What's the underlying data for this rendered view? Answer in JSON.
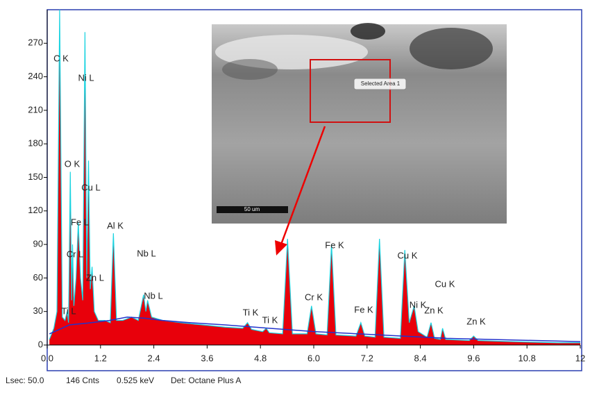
{
  "chart_data": {
    "type": "spectrum",
    "x": [
      0.05,
      0.15,
      0.22,
      0.28,
      0.34,
      0.4,
      0.45,
      0.48,
      0.52,
      0.55,
      0.57,
      0.6,
      0.65,
      0.7,
      0.75,
      0.8,
      0.85,
      0.89,
      0.93,
      0.97,
      1.01,
      1.06,
      1.15,
      1.3,
      1.42,
      1.49,
      1.56,
      1.7,
      1.9,
      2.05,
      2.17,
      2.22,
      2.26,
      2.35,
      2.6,
      3.0,
      3.5,
      4.0,
      4.4,
      4.51,
      4.6,
      4.85,
      4.93,
      5.0,
      5.3,
      5.41,
      5.52,
      5.85,
      5.95,
      6.05,
      6.3,
      6.4,
      6.5,
      6.95,
      7.06,
      7.15,
      7.38,
      7.48,
      7.58,
      7.95,
      8.05,
      8.15,
      8.26,
      8.35,
      8.55,
      8.64,
      8.72,
      8.85,
      8.9,
      8.97,
      9.5,
      9.6,
      9.7,
      10.5,
      11.5,
      12.0
    ],
    "values": [
      5,
      15,
      30,
      300,
      25,
      22,
      30,
      20,
      155,
      40,
      90,
      35,
      60,
      110,
      60,
      40,
      280,
      60,
      165,
      50,
      70,
      30,
      22,
      22,
      20,
      100,
      22,
      22,
      25,
      22,
      45,
      30,
      40,
      25,
      22,
      20,
      18,
      16,
      15,
      20,
      14,
      12,
      15,
      11,
      10,
      95,
      10,
      10,
      35,
      10,
      9,
      90,
      9,
      8,
      20,
      8,
      7,
      95,
      7,
      6,
      85,
      20,
      35,
      12,
      7,
      20,
      6,
      5,
      15,
      5,
      4,
      8,
      4,
      3,
      2,
      2
    ],
    "color": "#e8000b",
    "outline_color": "#19d3e0",
    "background": {
      "x": [
        0.05,
        0.5,
        1.0,
        1.4,
        1.8,
        2.2,
        2.6,
        3.2,
        4.0,
        5.0,
        6.0,
        7.0,
        8.0,
        9.0,
        10.0,
        11.0,
        12.0
      ],
      "values": [
        10,
        18,
        20,
        22,
        25,
        24,
        22,
        20,
        18,
        15,
        12,
        10,
        8,
        6,
        5,
        4,
        3
      ],
      "color": "#2233cc"
    },
    "xlim": [
      0,
      12
    ],
    "ylim": [
      0,
      300
    ],
    "xticks": [
      {
        "value": 0,
        "label": "0.0"
      },
      1.2,
      2.4,
      3.6,
      4.8,
      {
        "value": 6,
        "label": "6.0"
      },
      7.2,
      8.4,
      9.6,
      10.8,
      12
    ],
    "yticks": [
      0,
      30,
      60,
      90,
      120,
      150,
      180,
      210,
      240,
      270
    ],
    "annotations": [
      "C  K",
      "Ni L",
      "O  K",
      "Cu L",
      "Fe L",
      "Al K",
      "Cr L",
      "Zn L",
      "Ti L",
      "Nb L",
      "Nb L",
      "Ti K",
      "Ti K",
      "Cr K",
      "Fe K",
      "Fe K",
      "Cu K",
      "Ni K",
      "Cu K",
      "Zn K",
      "Zn K"
    ]
  },
  "inset": {
    "selection_label": "Selected Area 1",
    "scale_label": "50 um"
  },
  "status": [
    "Lsec: 50.0",
    "146 Cnts",
    "0.525 keV",
    "Det: Octane Plus A"
  ]
}
